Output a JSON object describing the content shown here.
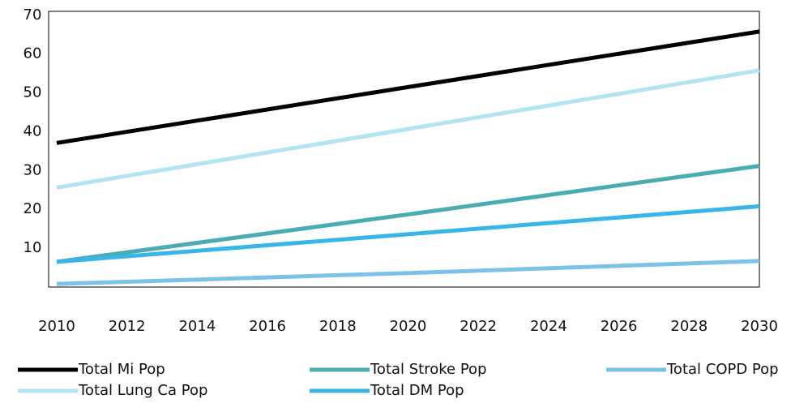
{
  "chart_data": {
    "type": "line",
    "x": [
      2010,
      2020,
      2030
    ],
    "series": [
      {
        "name": "Total Mi Pop",
        "color": "#000000",
        "values": [
          37.1,
          51.5,
          65.8
        ]
      },
      {
        "name": "Total Stroke Pop",
        "color": "#4aacb0",
        "values": [
          6.5,
          18.7,
          31.2
        ]
      },
      {
        "name": "Total COPD Pop",
        "color": "#7cc1ea",
        "values": [
          0.8,
          3.6,
          6.7
        ]
      },
      {
        "name": "Total Lung Ca Pop",
        "color": "#b3e4f2",
        "values": [
          25.6,
          40.7,
          55.8
        ]
      },
      {
        "name": "Total DM Pop",
        "color": "#38b6e8",
        "values": [
          6.5,
          13.6,
          20.8
        ]
      }
    ],
    "xlim": [
      2009.77,
      2030
    ],
    "xticks": [
      2010,
      2012,
      2014,
      2016,
      2018,
      2020,
      2022,
      2024,
      2026,
      2028,
      2030
    ],
    "ylim": [
      0,
      71
    ],
    "yticks": [
      10,
      20,
      30,
      40,
      50,
      60,
      70
    ],
    "grid": false,
    "legend": "bottom"
  }
}
